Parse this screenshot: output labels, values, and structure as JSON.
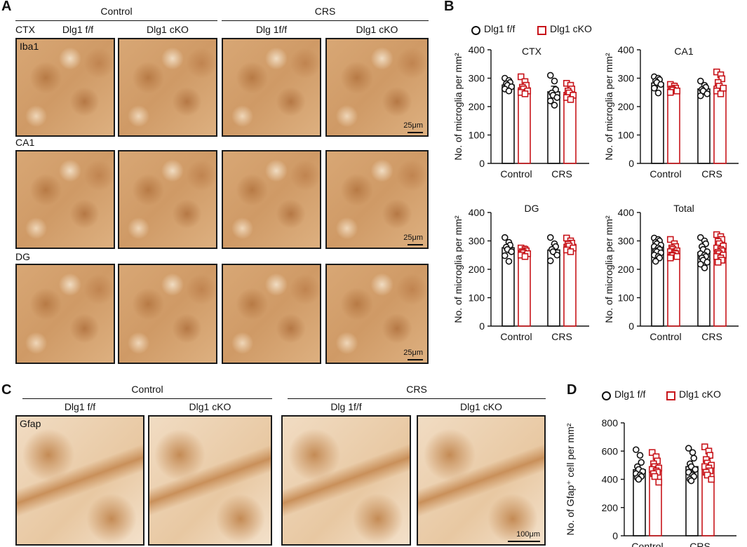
{
  "panels": {
    "A": "A",
    "B": "B",
    "C": "C",
    "D": "D"
  },
  "panel_a": {
    "groups": [
      "Control",
      "CRS"
    ],
    "columns": [
      "Dlg1 f/f",
      "Dlg1 cKO",
      "Dlg 1f/f",
      "Dlg1 cKO"
    ],
    "rows": [
      "CTX",
      "CA1",
      "DG"
    ],
    "stain": "Iba1",
    "scale_bar": "25μm"
  },
  "panel_c": {
    "groups": [
      "Control",
      "CRS"
    ],
    "columns": [
      "Dlg1 f/f",
      "Dlg1 cKO",
      "Dlg 1f/f",
      "Dlg1 cKO"
    ],
    "stain": "Gfap",
    "scale_bar": "100μm"
  },
  "colors": {
    "ff": "#111111",
    "cko": "#c8151b",
    "tissue": "#d9a978"
  },
  "legend": {
    "ff": "Dlg1 f/f",
    "cko": "Dlg1 cKO"
  },
  "chart_data": [
    {
      "type": "bar",
      "title": "CTX",
      "ylabel": "No. of microglia per mm²",
      "categories": [
        "Control",
        "CRS"
      ],
      "ylim": [
        0,
        400
      ],
      "yticks": [
        0,
        100,
        200,
        300,
        400
      ],
      "series": [
        {
          "name": "Dlg1 f/f",
          "values": [
            276,
            252
          ],
          "points": [
            [
              300,
              292,
              285,
              280,
              275,
              270,
              262,
              255
            ],
            [
              310,
              290,
              260,
              248,
              240,
              232,
              220,
              205
            ]
          ]
        },
        {
          "name": "Dlg1 cKO",
          "values": [
            266,
            250
          ],
          "points": [
            [
              305,
              288,
              275,
              268,
              262,
              255,
              250,
              245
            ],
            [
              282,
              275,
              262,
              255,
              248,
              240,
              232,
              225
            ]
          ]
        }
      ]
    },
    {
      "type": "bar",
      "title": "CA1",
      "ylabel": "No. of microglia per mm²",
      "categories": [
        "Control",
        "CRS"
      ],
      "ylim": [
        0,
        400
      ],
      "yticks": [
        0,
        100,
        200,
        300,
        400
      ],
      "series": [
        {
          "name": "Dlg1 f/f",
          "values": [
            283,
            262
          ],
          "points": [
            [
              305,
              300,
              295,
              290,
              285,
              278,
              265,
              248
            ],
            [
              290,
              275,
              268,
              260,
              255,
              245,
              238
            ]
          ]
        },
        {
          "name": "Dlg1 cKO",
          "values": [
            263,
            272
          ],
          "points": [
            [
              278,
              272,
              265,
              262,
              258,
              255,
              250
            ],
            [
              322,
              312,
              298,
              285,
              272,
              265,
              255,
              245
            ]
          ]
        }
      ]
    },
    {
      "type": "bar",
      "title": "DG",
      "ylabel": "No. of microglia per mm²",
      "categories": [
        "Control",
        "CRS"
      ],
      "ylim": [
        0,
        400
      ],
      "yticks": [
        0,
        100,
        200,
        300,
        400
      ],
      "series": [
        {
          "name": "Dlg1 f/f",
          "values": [
            276,
            268
          ],
          "points": [
            [
              312,
              295,
              285,
              278,
              270,
              262,
              248,
              228
            ],
            [
              312,
              290,
              280,
              270,
              262,
              250,
              230
            ]
          ]
        },
        {
          "name": "Dlg1 cKO",
          "values": [
            262,
            288
          ],
          "points": [
            [
              275,
              270,
              265,
              262,
              258,
              255,
              250,
              245
            ],
            [
              310,
              300,
              292,
              288,
              282,
              275,
              268,
              262
            ]
          ]
        }
      ]
    },
    {
      "type": "bar",
      "title": "Total",
      "ylabel": "No. of microglia per mm²",
      "categories": [
        "Control",
        "CRS"
      ],
      "ylim": [
        0,
        400
      ],
      "yticks": [
        0,
        100,
        200,
        300,
        400
      ],
      "series": [
        {
          "name": "Dlg1 f/f",
          "values": [
            278,
            260
          ],
          "points": [
            [
              310,
              305,
              300,
              295,
              290,
              285,
              280,
              275,
              270,
              265,
              262,
              258,
              250,
              245,
              240,
              228
            ],
            [
              312,
              300,
              290,
              280,
              270,
              262,
              255,
              250,
              245,
              240,
              232,
              225,
              218,
              205
            ]
          ]
        },
        {
          "name": "Dlg1 cKO",
          "values": [
            263,
            270
          ],
          "points": [
            [
              305,
              290,
              280,
              275,
              270,
              265,
              262,
              258,
              255,
              250,
              248,
              245,
              240
            ],
            [
              322,
              315,
              305,
              298,
              290,
              282,
              275,
              270,
              265,
              260,
              255,
              250,
              245,
              240,
              232,
              225
            ]
          ]
        }
      ]
    },
    {
      "type": "bar",
      "title": "",
      "ylabel": "No. of Gfap⁺ cell per mm²",
      "categories": [
        "Control",
        "CRS"
      ],
      "ylim": [
        0,
        800
      ],
      "yticks": [
        0,
        200,
        400,
        600,
        800
      ],
      "series": [
        {
          "name": "Dlg1 f/f",
          "values": [
            468,
            490
          ],
          "points": [
            [
              610,
              570,
              520,
              490,
              470,
              455,
              440,
              430,
              420,
              410,
              400
            ],
            [
              620,
              590,
              550,
              510,
              490,
              470,
              450,
              430,
              420,
              400,
              390
            ]
          ]
        },
        {
          "name": "Dlg1 cKO",
          "values": [
            488,
            505
          ],
          "points": [
            [
              590,
              560,
              530,
              510,
              490,
              480,
              470,
              460,
              450,
              440,
              420,
              380
            ],
            [
              630,
              600,
              570,
              540,
              515,
              500,
              490,
              480,
              460,
              450,
              430,
              400
            ]
          ]
        }
      ]
    }
  ]
}
